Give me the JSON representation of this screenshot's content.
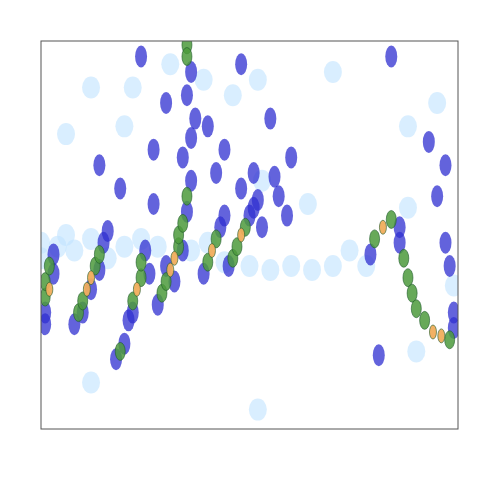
{
  "chart_data": {
    "type": "heatmap",
    "xlim": [
      0,
      100
    ],
    "ylim": [
      0,
      100
    ],
    "tick_labels": false,
    "grid": false,
    "color_range": [
      1,
      4
    ],
    "cells": [
      [
        1,
        30,
        2
      ],
      [
        1,
        34,
        3
      ],
      [
        2,
        36,
        4
      ],
      [
        1,
        38,
        3
      ],
      [
        3,
        40,
        2
      ],
      [
        2,
        42,
        3
      ],
      [
        3,
        45,
        2
      ],
      [
        1,
        27,
        2
      ],
      [
        8,
        27,
        2
      ],
      [
        9,
        30,
        3
      ],
      [
        10,
        33,
        3
      ],
      [
        11,
        36,
        4
      ],
      [
        12,
        39,
        4
      ],
      [
        13,
        42,
        3
      ],
      [
        14,
        45,
        3
      ],
      [
        15,
        48,
        2
      ],
      [
        16,
        51,
        2
      ],
      [
        12,
        36,
        2
      ],
      [
        10,
        30,
        2
      ],
      [
        14,
        41,
        2
      ],
      [
        18,
        18,
        2
      ],
      [
        19,
        20,
        3
      ],
      [
        20,
        22,
        2
      ],
      [
        21,
        28,
        2
      ],
      [
        22,
        33,
        3
      ],
      [
        23,
        36,
        4
      ],
      [
        24,
        39,
        3
      ],
      [
        24,
        43,
        3
      ],
      [
        25,
        46,
        2
      ],
      [
        22,
        30,
        2
      ],
      [
        26,
        40,
        2
      ],
      [
        28,
        32,
        2
      ],
      [
        29,
        35,
        3
      ],
      [
        30,
        38,
        3
      ],
      [
        31,
        41,
        4
      ],
      [
        32,
        44,
        4
      ],
      [
        33,
        47,
        3
      ],
      [
        33,
        50,
        3
      ],
      [
        34,
        53,
        3
      ],
      [
        35,
        56,
        2
      ],
      [
        35,
        60,
        3
      ],
      [
        36,
        64,
        2
      ],
      [
        30,
        42,
        2
      ],
      [
        34,
        46,
        2
      ],
      [
        32,
        38,
        2
      ],
      [
        35,
        99,
        3
      ],
      [
        35,
        96,
        3
      ],
      [
        36,
        92,
        2
      ],
      [
        35,
        86,
        2
      ],
      [
        37,
        80,
        2
      ],
      [
        36,
        75,
        2
      ],
      [
        34,
        70,
        2
      ],
      [
        39,
        40,
        2
      ],
      [
        40,
        43,
        3
      ],
      [
        41,
        46,
        4
      ],
      [
        42,
        49,
        3
      ],
      [
        43,
        52,
        2
      ],
      [
        44,
        55,
        2
      ],
      [
        45,
        42,
        2
      ],
      [
        46,
        44,
        3
      ],
      [
        47,
        47,
        3
      ],
      [
        48,
        50,
        4
      ],
      [
        49,
        52,
        3
      ],
      [
        50,
        55,
        2
      ],
      [
        51,
        57,
        2
      ],
      [
        52,
        59,
        2
      ],
      [
        53,
        52,
        2
      ],
      [
        53,
        64,
        1
      ],
      [
        48,
        62,
        2
      ],
      [
        51,
        66,
        2
      ],
      [
        57,
        60,
        2
      ],
      [
        59,
        55,
        2
      ],
      [
        56,
        65,
        2
      ],
      [
        14,
        68,
        2
      ],
      [
        20,
        78,
        1
      ],
      [
        22,
        88,
        1
      ],
      [
        24,
        96,
        2
      ],
      [
        27,
        72,
        2
      ],
      [
        30,
        84,
        2
      ],
      [
        31,
        94,
        1
      ],
      [
        40,
        78,
        2
      ],
      [
        42,
        66,
        2
      ],
      [
        44,
        72,
        2
      ],
      [
        46,
        86,
        1
      ],
      [
        48,
        94,
        2
      ],
      [
        52,
        90,
        1
      ],
      [
        55,
        80,
        2
      ],
      [
        60,
        70,
        2
      ],
      [
        64,
        58,
        1
      ],
      [
        70,
        92,
        1
      ],
      [
        88,
        78,
        1
      ],
      [
        84,
        96,
        2
      ],
      [
        93,
        74,
        2
      ],
      [
        97,
        68,
        2
      ],
      [
        95,
        84,
        1
      ],
      [
        6,
        76,
        1
      ],
      [
        12,
        88,
        1
      ],
      [
        39,
        90,
        1
      ],
      [
        27,
        58,
        2
      ],
      [
        19,
        62,
        2
      ],
      [
        12,
        12,
        1
      ],
      [
        81,
        19,
        2
      ],
      [
        90,
        20,
        1
      ],
      [
        52,
        5,
        1
      ],
      [
        79,
        45,
        2
      ],
      [
        80,
        49,
        3
      ],
      [
        82,
        52,
        4
      ],
      [
        84,
        54,
        3
      ],
      [
        86,
        52,
        2
      ],
      [
        86,
        48,
        2
      ],
      [
        87,
        44,
        3
      ],
      [
        88,
        39,
        3
      ],
      [
        89,
        35,
        3
      ],
      [
        90,
        31,
        3
      ],
      [
        92,
        28,
        3
      ],
      [
        94,
        25,
        4
      ],
      [
        96,
        24,
        4
      ],
      [
        98,
        23,
        3
      ],
      [
        99,
        26,
        2
      ],
      [
        99,
        30,
        2
      ],
      [
        99,
        37,
        1
      ],
      [
        98,
        42,
        2
      ],
      [
        97,
        48,
        2
      ],
      [
        95,
        60,
        2
      ],
      [
        88,
        57,
        1
      ],
      [
        0,
        48,
        1
      ],
      [
        4,
        47,
        1
      ],
      [
        8,
        46,
        1
      ],
      [
        12,
        49,
        1
      ],
      [
        16,
        44,
        1
      ],
      [
        20,
        47,
        1
      ],
      [
        24,
        49,
        1
      ],
      [
        28,
        47,
        1
      ],
      [
        36,
        46,
        1
      ],
      [
        40,
        48,
        1
      ],
      [
        44,
        43,
        1
      ],
      [
        50,
        42,
        1
      ],
      [
        55,
        41,
        1
      ],
      [
        60,
        42,
        1
      ],
      [
        65,
        41,
        1
      ],
      [
        70,
        42,
        1
      ],
      [
        74,
        46,
        1
      ],
      [
        78,
        42,
        1
      ],
      [
        0,
        44,
        1
      ],
      [
        6,
        50,
        1
      ]
    ]
  }
}
